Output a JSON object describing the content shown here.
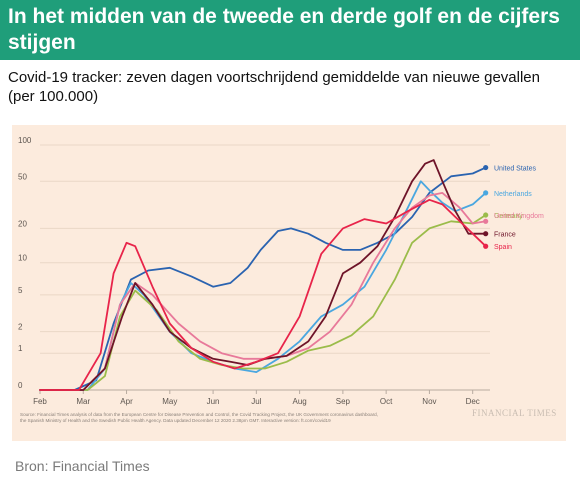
{
  "header": {
    "title": "In het midden van de tweede en derde golf en de cijfers stijgen",
    "subtitle": "Covid-19 tracker: zeven dagen voortschrijdend gemiddelde van nieuwe gevallen (per 100.000)"
  },
  "figure": {
    "source_note": "Source: Financial Times analysis of data from the European Centre for Disease Prevention and Control, the Covid Tracking Project, the UK Government coronavirus dashboard, the Spanish Ministry of Health and the Swedish Public Health Agency. Data updated December 12 2020 2.38pm GMT. Interactive version: ft.com/covid19",
    "logo": "FINANCIAL TIMES"
  },
  "footer": {
    "credit": "Bron: Financial Times"
  },
  "chart_data": {
    "type": "line",
    "title": "",
    "xlabel": "",
    "ylabel": "",
    "y_scale": "log",
    "ylim": [
      0,
      100
    ],
    "xlim": [
      0,
      10.4
    ],
    "grid": true,
    "yticks": [
      0,
      1,
      2,
      5,
      10,
      20,
      50,
      100
    ],
    "x_ticks": [
      {
        "label": "Feb",
        "x": 0
      },
      {
        "label": "Mar",
        "x": 1
      },
      {
        "label": "Apr",
        "x": 2
      },
      {
        "label": "May",
        "x": 3
      },
      {
        "label": "Jun",
        "x": 4
      },
      {
        "label": "Jul",
        "x": 5
      },
      {
        "label": "Aug",
        "x": 6
      },
      {
        "label": "Sep",
        "x": 7
      },
      {
        "label": "Oct",
        "x": 8
      },
      {
        "label": "Nov",
        "x": 9
      },
      {
        "label": "Dec",
        "x": 10
      }
    ],
    "series": [
      {
        "name": "United States",
        "color": "#2a63b0",
        "labelColor": "#2a63b0",
        "points": [
          [
            0,
            0
          ],
          [
            0.8,
            0
          ],
          [
            1.3,
            0.2
          ],
          [
            1.7,
            2.5
          ],
          [
            2.1,
            7
          ],
          [
            2.5,
            8.5
          ],
          [
            3,
            9
          ],
          [
            3.5,
            7.5
          ],
          [
            4,
            6
          ],
          [
            4.4,
            6.5
          ],
          [
            4.8,
            9
          ],
          [
            5.1,
            13
          ],
          [
            5.5,
            19
          ],
          [
            5.8,
            20
          ],
          [
            6.2,
            18
          ],
          [
            6.6,
            15
          ],
          [
            7,
            13
          ],
          [
            7.4,
            13
          ],
          [
            7.8,
            15
          ],
          [
            8.2,
            18
          ],
          [
            8.6,
            25
          ],
          [
            9,
            40
          ],
          [
            9.5,
            55
          ],
          [
            10,
            58
          ],
          [
            10.3,
            65
          ]
        ]
      },
      {
        "name": "Netherlands",
        "color": "#4aa7e0",
        "labelColor": "#4aa7e0",
        "points": [
          [
            0,
            0
          ],
          [
            1.1,
            0
          ],
          [
            1.5,
            0.5
          ],
          [
            1.85,
            4
          ],
          [
            2.1,
            6.5
          ],
          [
            2.4,
            5
          ],
          [
            3,
            2
          ],
          [
            3.5,
            1
          ],
          [
            4,
            0.7
          ],
          [
            4.5,
            0.5
          ],
          [
            5,
            0.4
          ],
          [
            5.5,
            0.8
          ],
          [
            6,
            1.5
          ],
          [
            6.5,
            3
          ],
          [
            7,
            4
          ],
          [
            7.5,
            6
          ],
          [
            8,
            13
          ],
          [
            8.5,
            30
          ],
          [
            8.8,
            50
          ],
          [
            9,
            42
          ],
          [
            9.3,
            33
          ],
          [
            9.6,
            28
          ],
          [
            10,
            32
          ],
          [
            10.3,
            40
          ]
        ]
      },
      {
        "name": "Germany",
        "color": "#9bbc4a",
        "labelColor": "#9bbc4a",
        "points": [
          [
            0,
            0
          ],
          [
            1.1,
            0
          ],
          [
            1.5,
            0.3
          ],
          [
            1.85,
            3
          ],
          [
            2.2,
            5.5
          ],
          [
            2.7,
            3.5
          ],
          [
            3.2,
            1.5
          ],
          [
            3.7,
            0.8
          ],
          [
            4.2,
            0.6
          ],
          [
            4.7,
            0.5
          ],
          [
            5.2,
            0.5
          ],
          [
            5.7,
            0.7
          ],
          [
            6.2,
            1.1
          ],
          [
            6.7,
            1.3
          ],
          [
            7.2,
            1.8
          ],
          [
            7.7,
            3
          ],
          [
            8.2,
            7
          ],
          [
            8.6,
            15
          ],
          [
            9,
            20
          ],
          [
            9.5,
            23
          ],
          [
            10,
            22
          ],
          [
            10.3,
            26
          ]
        ]
      },
      {
        "name": "United Kingdom",
        "color": "#e8799a",
        "labelColor": "#e8799a",
        "points": [
          [
            0,
            0
          ],
          [
            1.0,
            0
          ],
          [
            1.5,
            0.5
          ],
          [
            1.85,
            4
          ],
          [
            2.2,
            6.5
          ],
          [
            2.6,
            5
          ],
          [
            3.2,
            2.5
          ],
          [
            3.7,
            1.5
          ],
          [
            4.2,
            1
          ],
          [
            4.7,
            0.8
          ],
          [
            5.2,
            0.8
          ],
          [
            5.7,
            0.9
          ],
          [
            6.2,
            1.2
          ],
          [
            6.7,
            2
          ],
          [
            7.2,
            4
          ],
          [
            7.7,
            10
          ],
          [
            8.2,
            20
          ],
          [
            8.6,
            30
          ],
          [
            9,
            38
          ],
          [
            9.3,
            40
          ],
          [
            9.7,
            30
          ],
          [
            10,
            22
          ],
          [
            10.3,
            23
          ]
        ]
      },
      {
        "name": "France",
        "color": "#6e1429",
        "labelColor": "#6e1429",
        "points": [
          [
            0,
            0
          ],
          [
            1.0,
            0
          ],
          [
            1.5,
            0.5
          ],
          [
            1.9,
            3
          ],
          [
            2.2,
            6.5
          ],
          [
            2.6,
            4
          ],
          [
            3,
            2
          ],
          [
            3.5,
            1.2
          ],
          [
            4,
            0.8
          ],
          [
            4.4,
            0.7
          ],
          [
            4.8,
            0.6
          ],
          [
            5.2,
            0.8
          ],
          [
            5.7,
            0.9
          ],
          [
            6.2,
            1.5
          ],
          [
            6.6,
            3
          ],
          [
            7,
            8
          ],
          [
            7.4,
            10
          ],
          [
            7.8,
            14
          ],
          [
            8.2,
            25
          ],
          [
            8.6,
            50
          ],
          [
            8.9,
            70
          ],
          [
            9.1,
            75
          ],
          [
            9.3,
            50
          ],
          [
            9.6,
            28
          ],
          [
            9.9,
            18
          ],
          [
            10.3,
            18
          ]
        ]
      },
      {
        "name": "Spain",
        "color": "#e8244a",
        "labelColor": "#e8244a",
        "points": [
          [
            0,
            0
          ],
          [
            0.9,
            0
          ],
          [
            1.4,
            1
          ],
          [
            1.7,
            8
          ],
          [
            2.0,
            15
          ],
          [
            2.2,
            14
          ],
          [
            2.6,
            6
          ],
          [
            3,
            2.5
          ],
          [
            3.5,
            1.2
          ],
          [
            4,
            0.7
          ],
          [
            4.5,
            0.5
          ],
          [
            5,
            0.7
          ],
          [
            5.5,
            1
          ],
          [
            6,
            3
          ],
          [
            6.5,
            12
          ],
          [
            7,
            20
          ],
          [
            7.5,
            24
          ],
          [
            8,
            22
          ],
          [
            8.5,
            28
          ],
          [
            9,
            35
          ],
          [
            9.3,
            32
          ],
          [
            9.6,
            25
          ],
          [
            10,
            18
          ],
          [
            10.3,
            14
          ]
        ]
      }
    ],
    "end_labels": [
      {
        "text": "United States",
        "color": "#2a63b0",
        "y": 65
      },
      {
        "text": "Netherlands",
        "color": "#4aa7e0",
        "y": 40
      },
      {
        "text": "Germany",
        "color": "#9bbc4a",
        "y": 26
      },
      {
        "text": "United Kingdom",
        "color": "#e8799a",
        "y": 26
      },
      {
        "text": "France",
        "color": "#6e1429",
        "y": 18
      },
      {
        "text": "Spain",
        "color": "#e8244a",
        "y": 14
      }
    ]
  }
}
